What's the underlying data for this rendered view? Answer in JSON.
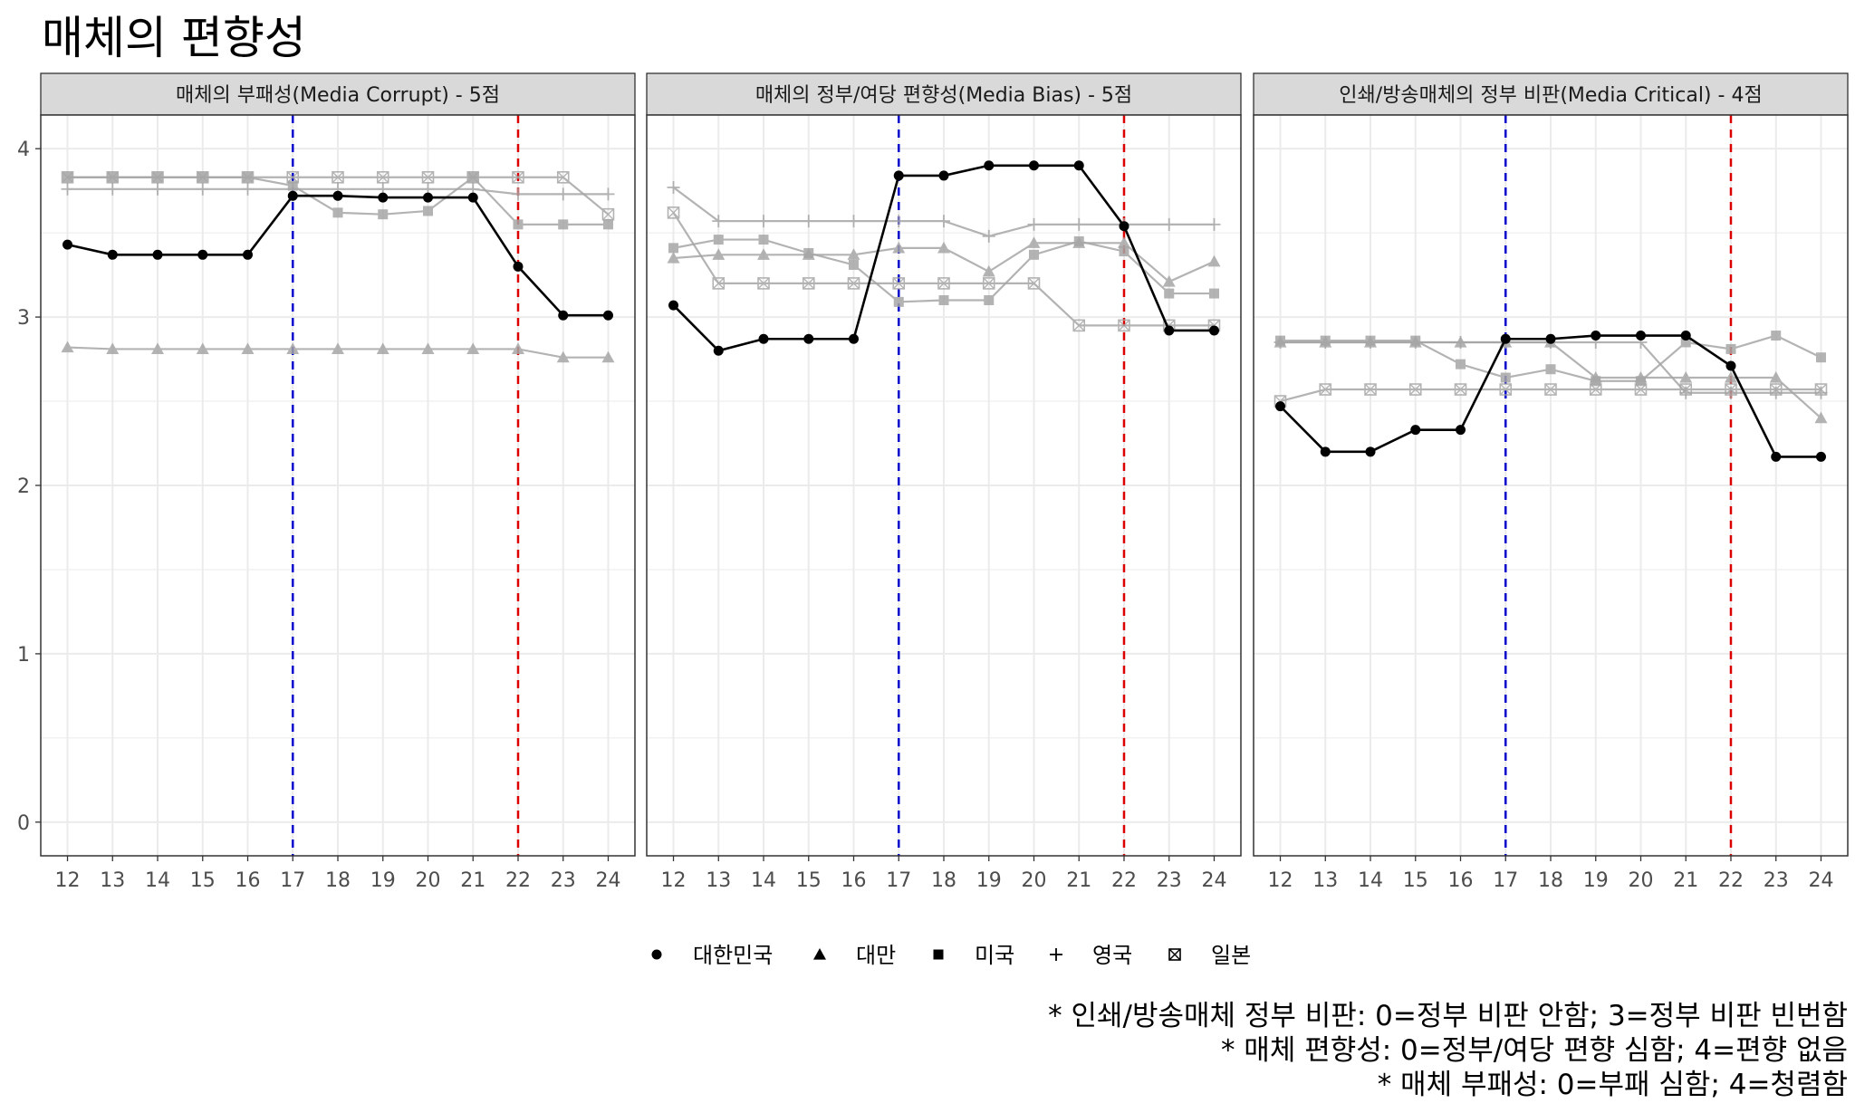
{
  "title": "매체의 편향성",
  "colors": {
    "highlight": "#000000",
    "others": "#a6a6a6",
    "strip_bg": "#d9d9d9",
    "grid": "#ebebeb",
    "vline_blue": "#0000cc",
    "vline_red": "#dd0000"
  },
  "chart_data": {
    "type": "line",
    "x": [
      12,
      13,
      14,
      15,
      16,
      17,
      18,
      19,
      20,
      21,
      22,
      23,
      24
    ],
    "ylim": [
      -0.2,
      4.2
    ],
    "yticks": [
      0,
      1,
      2,
      3,
      4
    ],
    "vlines": [
      17,
      22
    ],
    "grid": true,
    "legend_position": "bottom",
    "legend": [
      {
        "name": "대한민국",
        "marker": "circle-icon"
      },
      {
        "name": "대만",
        "marker": "triangle-icon"
      },
      {
        "name": "미국",
        "marker": "square-icon"
      },
      {
        "name": "영국",
        "marker": "plus-icon"
      },
      {
        "name": "일본",
        "marker": "boxed-x-icon"
      }
    ],
    "panels": [
      {
        "title": "매체의 부패성(Media Corrupt) - 5점",
        "series": [
          {
            "name": "대한민국",
            "values": [
              3.43,
              3.37,
              3.37,
              3.37,
              3.37,
              3.72,
              3.72,
              3.71,
              3.71,
              3.71,
              3.3,
              3.01,
              3.01
            ]
          },
          {
            "name": "대만",
            "values": [
              2.82,
              2.81,
              2.81,
              2.81,
              2.81,
              2.81,
              2.81,
              2.81,
              2.81,
              2.81,
              2.81,
              2.76,
              2.76
            ]
          },
          {
            "name": "미국",
            "values": [
              3.83,
              3.83,
              3.83,
              3.83,
              3.83,
              3.78,
              3.62,
              3.61,
              3.63,
              3.83,
              3.55,
              3.55,
              3.55
            ]
          },
          {
            "name": "영국",
            "values": [
              3.76,
              3.76,
              3.76,
              3.76,
              3.76,
              3.76,
              3.76,
              3.76,
              3.76,
              3.76,
              3.73,
              3.73,
              3.73
            ]
          },
          {
            "name": "일본",
            "values": [
              3.83,
              3.83,
              3.83,
              3.83,
              3.83,
              3.83,
              3.83,
              3.83,
              3.83,
              3.83,
              3.83,
              3.83,
              3.61
            ]
          }
        ]
      },
      {
        "title": "매체의 정부/여당 편향성(Media Bias) - 5점",
        "series": [
          {
            "name": "대한민국",
            "values": [
              3.07,
              2.8,
              2.87,
              2.87,
              2.87,
              3.84,
              3.84,
              3.9,
              3.9,
              3.9,
              3.54,
              2.92,
              2.92
            ]
          },
          {
            "name": "대만",
            "values": [
              3.35,
              3.37,
              3.37,
              3.37,
              3.37,
              3.41,
              3.41,
              3.27,
              3.44,
              3.44,
              3.44,
              3.21,
              3.33
            ]
          },
          {
            "name": "미국",
            "values": [
              3.41,
              3.46,
              3.46,
              3.38,
              3.31,
              3.09,
              3.1,
              3.1,
              3.37,
              3.45,
              3.39,
              3.14,
              3.14
            ]
          },
          {
            "name": "영국",
            "values": [
              3.77,
              3.57,
              3.57,
              3.57,
              3.57,
              3.57,
              3.57,
              3.48,
              3.55,
              3.55,
              3.55,
              3.55,
              3.55
            ]
          },
          {
            "name": "일본",
            "values": [
              3.62,
              3.2,
              3.2,
              3.2,
              3.2,
              3.2,
              3.2,
              3.2,
              3.2,
              2.95,
              2.95,
              2.95,
              2.95
            ]
          }
        ]
      },
      {
        "title": "인쇄/방송매체의 정부 비판(Media Critical) - 4점",
        "series": [
          {
            "name": "대한민국",
            "values": [
              2.47,
              2.2,
              2.2,
              2.33,
              2.33,
              2.87,
              2.87,
              2.89,
              2.89,
              2.89,
              2.71,
              2.17,
              2.17
            ]
          },
          {
            "name": "대만",
            "values": [
              2.85,
              2.85,
              2.85,
              2.85,
              2.85,
              2.85,
              2.85,
              2.64,
              2.64,
              2.64,
              2.64,
              2.64,
              2.4
            ]
          },
          {
            "name": "미국",
            "values": [
              2.86,
              2.86,
              2.86,
              2.86,
              2.72,
              2.64,
              2.69,
              2.62,
              2.62,
              2.85,
              2.81,
              2.89,
              2.76
            ]
          },
          {
            "name": "영국",
            "values": [
              2.85,
              2.85,
              2.85,
              2.85,
              2.85,
              2.85,
              2.85,
              2.85,
              2.85,
              2.55,
              2.55,
              2.55,
              2.55
            ]
          },
          {
            "name": "일본",
            "values": [
              2.5,
              2.57,
              2.57,
              2.57,
              2.57,
              2.57,
              2.57,
              2.57,
              2.57,
              2.57,
              2.57,
              2.57,
              2.57
            ]
          }
        ]
      }
    ]
  },
  "notes": [
    "* 인쇄/방송매체 정부 비판: 0=정부 비판 안함; 3=정부 비판 빈번함",
    "* 매체 편향성: 0=정부/여당 편향 심함; 4=편향 없음",
    "* 매체 부패성: 0=부패 심함; 4=청렴함"
  ]
}
